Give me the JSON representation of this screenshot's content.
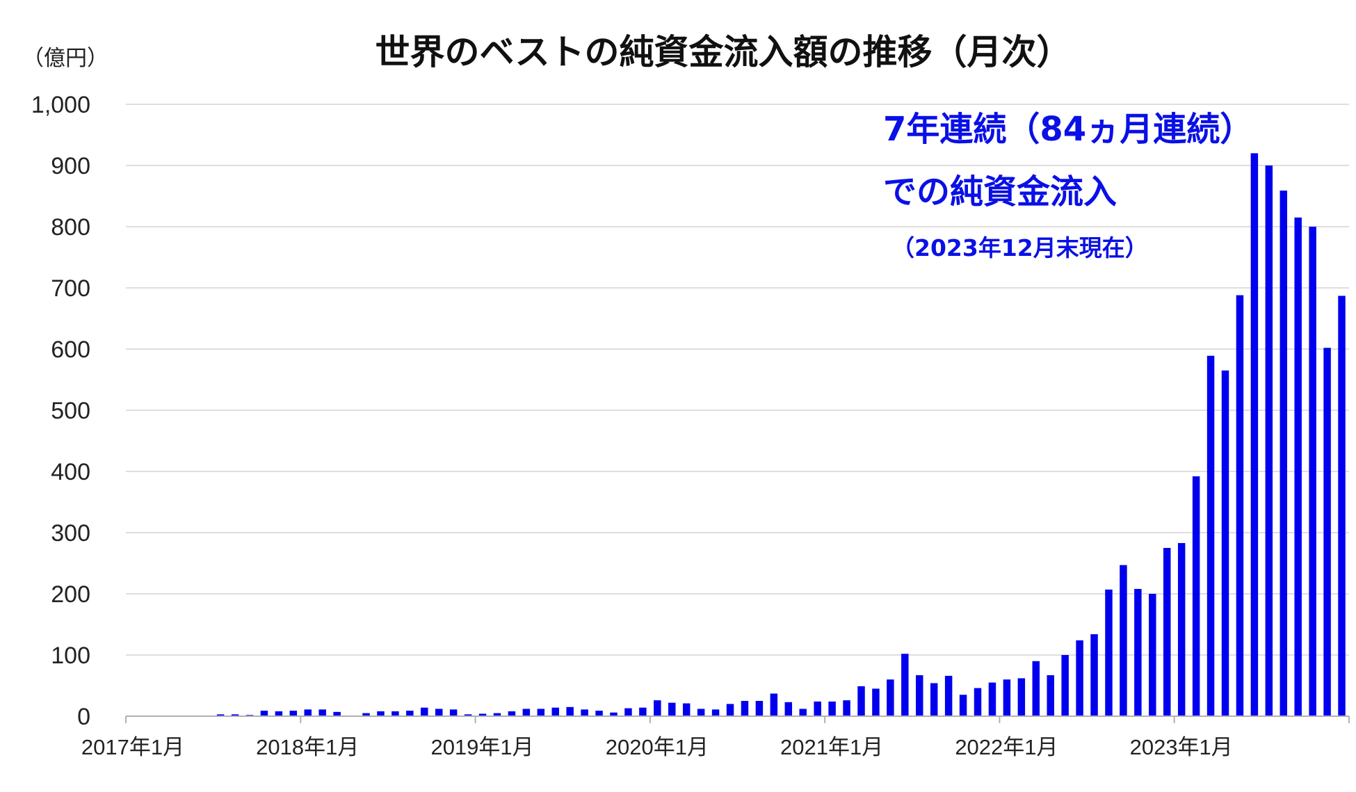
{
  "chart_data": {
    "type": "bar",
    "title": "世界のベストの純資金流入額の推移（月次）",
    "ylabel": "（億円）",
    "xlabel": "",
    "ylim": [
      0,
      1000
    ],
    "y_ticks": [
      "0",
      "100",
      "200",
      "300",
      "400",
      "500",
      "600",
      "700",
      "800",
      "900",
      "1,000"
    ],
    "x_tick_labels": [
      "2017年1月",
      "2018年1月",
      "2019年1月",
      "2020年1月",
      "2021年1月",
      "2022年1月",
      "2023年1月"
    ],
    "grid": true,
    "bar_color": "#0000ee",
    "annotation": {
      "line1": "7年連続（84ヵ月連続）",
      "line2": "での純資金流入",
      "line3": "（2023年12月末現在）"
    },
    "categories": [
      "2017-01",
      "2017-02",
      "2017-03",
      "2017-04",
      "2017-05",
      "2017-06",
      "2017-07",
      "2017-08",
      "2017-09",
      "2017-10",
      "2017-11",
      "2017-12",
      "2018-01",
      "2018-02",
      "2018-03",
      "2018-04",
      "2018-05",
      "2018-06",
      "2018-07",
      "2018-08",
      "2018-09",
      "2018-10",
      "2018-11",
      "2018-12",
      "2019-01",
      "2019-02",
      "2019-03",
      "2019-04",
      "2019-05",
      "2019-06",
      "2019-07",
      "2019-08",
      "2019-09",
      "2019-10",
      "2019-11",
      "2019-12",
      "2020-01",
      "2020-02",
      "2020-03",
      "2020-04",
      "2020-05",
      "2020-06",
      "2020-07",
      "2020-08",
      "2020-09",
      "2020-10",
      "2020-11",
      "2020-12",
      "2021-01",
      "2021-02",
      "2021-03",
      "2021-04",
      "2021-05",
      "2021-06",
      "2021-07",
      "2021-08",
      "2021-09",
      "2021-10",
      "2021-11",
      "2021-12",
      "2022-01",
      "2022-02",
      "2022-03",
      "2022-04",
      "2022-05",
      "2022-06",
      "2022-07",
      "2022-08",
      "2022-09",
      "2022-10",
      "2022-11",
      "2022-12",
      "2023-01",
      "2023-02",
      "2023-03",
      "2023-04",
      "2023-05",
      "2023-06",
      "2023-07",
      "2023-08",
      "2023-09",
      "2023-10",
      "2023-11",
      "2023-12"
    ],
    "values": [
      0,
      0,
      0,
      0,
      0,
      0,
      3,
      3,
      2,
      9,
      8,
      9,
      11,
      11,
      7,
      0,
      5,
      8,
      8,
      9,
      14,
      12,
      11,
      3,
      4,
      5,
      8,
      12,
      12,
      14,
      15,
      11,
      9,
      6,
      13,
      14,
      26,
      22,
      21,
      12,
      11,
      20,
      25,
      25,
      37,
      23,
      12,
      24,
      24,
      26,
      49,
      45,
      60,
      102,
      67,
      54,
      66,
      35,
      46,
      55,
      60,
      62,
      90,
      67,
      100,
      124,
      134,
      207,
      247,
      208,
      200,
      275,
      283,
      392,
      589,
      565,
      688,
      920,
      900,
      859,
      815,
      800,
      602,
      687
    ]
  }
}
